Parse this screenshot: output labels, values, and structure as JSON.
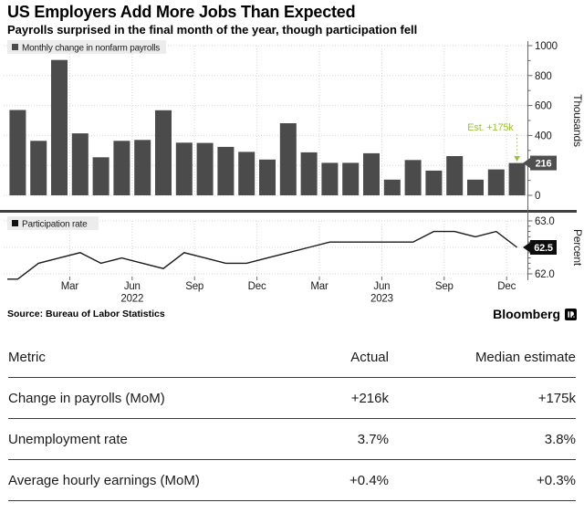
{
  "header": {
    "title": "US Employers Add More Jobs Than Expected",
    "subtitle": "Payrolls surprised in the final month of the year, though participation fell"
  },
  "chart_data": [
    {
      "type": "bar",
      "legend": "Monthly change in nonfarm payrolls",
      "unit": "Thousands",
      "ylim": [
        0,
        1000
      ],
      "yticks": [
        0,
        200,
        400,
        600,
        800,
        1000
      ],
      "months": [
        "Dec '21",
        "Jan '22",
        "Feb '22",
        "Mar '22",
        "Apr '22",
        "May '22",
        "Jun '22",
        "Jul '22",
        "Aug '22",
        "Sep '22",
        "Oct '22",
        "Nov '22",
        "Dec '22",
        "Jan '23",
        "Feb '23",
        "Mar '23",
        "Apr '23",
        "May '23",
        "Jun '23",
        "Jul '23",
        "Aug '23",
        "Sep '23",
        "Oct '23",
        "Nov '23",
        "Dec '23"
      ],
      "values": [
        570,
        364,
        904,
        414,
        254,
        364,
        370,
        568,
        352,
        350,
        324,
        290,
        239,
        482,
        287,
        217,
        217,
        281,
        105,
        236,
        165,
        262,
        105,
        173,
        216
      ],
      "end_label": "216",
      "annotation": {
        "label": "Est. +175k"
      }
    },
    {
      "type": "line",
      "legend": "Participation rate",
      "unit": "Percent",
      "ylim": [
        62.0,
        63.0
      ],
      "yticks": [
        62.0,
        62.5,
        63.0
      ],
      "months": [
        "Dec '21",
        "Jan '22",
        "Feb '22",
        "Mar '22",
        "Apr '22",
        "May '22",
        "Jun '22",
        "Jul '22",
        "Aug '22",
        "Sep '22",
        "Oct '22",
        "Nov '22",
        "Dec '22",
        "Jan '23",
        "Feb '23",
        "Mar '23",
        "Apr '23",
        "May '23",
        "Jun '23",
        "Jul '23",
        "Aug '23",
        "Sep '23",
        "Oct '23",
        "Nov '23",
        "Dec '23"
      ],
      "values": [
        61.9,
        62.2,
        62.3,
        62.4,
        62.2,
        62.3,
        62.2,
        62.1,
        62.4,
        62.3,
        62.2,
        62.2,
        62.3,
        62.4,
        62.5,
        62.6,
        62.6,
        62.6,
        62.6,
        62.6,
        62.8,
        62.8,
        62.7,
        62.8,
        62.5
      ],
      "end_label": "62.5"
    }
  ],
  "x_axis": {
    "ticks": [
      {
        "label": "Mar",
        "month_index": 3
      },
      {
        "label": "Jun",
        "month_index": 6
      },
      {
        "label": "Sep",
        "month_index": 9
      },
      {
        "label": "Dec",
        "month_index": 12
      },
      {
        "label": "Mar",
        "month_index": 15
      },
      {
        "label": "Jun",
        "month_index": 18
      },
      {
        "label": "Sep",
        "month_index": 21
      },
      {
        "label": "Dec",
        "month_index": 24
      }
    ],
    "years": [
      {
        "label": "2022",
        "month_index": 6
      },
      {
        "label": "2023",
        "month_index": 18
      }
    ]
  },
  "footer": {
    "source": "Source: Bureau of Labor Statistics",
    "brand": "Bloomberg"
  },
  "colors": {
    "bar": "#4b4b4b",
    "line": "#1a1a1a",
    "grid": "#d6d6d6",
    "axis": "#666666",
    "text": "#1a1a1a",
    "estimate_green": "#9cc13a",
    "badge_payrolls_bg": "#4f4f4f",
    "badge_participation_bg": "#0d0d0d",
    "legend_bg": "#ececec",
    "divider": "#404040"
  },
  "table": {
    "headers": [
      "Metric",
      "Actual",
      "Median estimate"
    ],
    "rows": [
      [
        "Change in payrolls (MoM)",
        "+216k",
        "+175k"
      ],
      [
        "Unemployment rate",
        "3.7%",
        "3.8%"
      ],
      [
        "Average hourly earnings (MoM)",
        "+0.4%",
        "+0.3%"
      ]
    ]
  }
}
